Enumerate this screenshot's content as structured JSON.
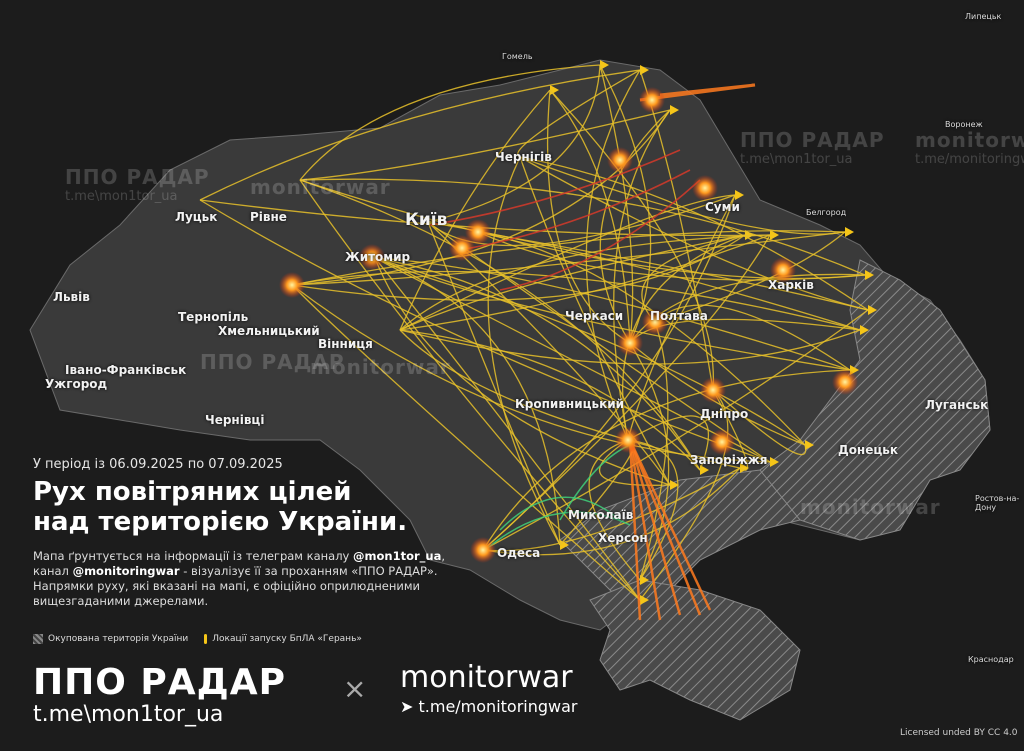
{
  "map": {
    "period": "У період із 06.09.2025 по 07.09.2025",
    "title_line1": "Рух повітряних цілей",
    "title_line2": "над територією України.",
    "description": {
      "p1": "Мапа ґрунтується на інформації із телеграм каналу ",
      "ch1": "@mon1tor_ua",
      "p2": ", канал ",
      "ch2": "@monitoringwar",
      "p3": " - візуалізує її за проханням «ППО РАДАР». Напрямки руху, які вказані на мапі, є офіційно оприлюдненими вищезгаданими джерелами."
    },
    "legend": {
      "occupied": "Окупована територія України",
      "launch": "Локації запуску БпЛА «Герань»"
    },
    "colors": {
      "drone_path": "#e8c12a",
      "missile_path": "#ff7a1f",
      "red_path": "#d63a2a",
      "green_path": "#3fd07a",
      "occupied": "#5a5a5a"
    },
    "cities_major": [
      {
        "name": "Київ"
      },
      {
        "name": "Житомир"
      },
      {
        "name": "Рівне"
      },
      {
        "name": "Луцьк"
      },
      {
        "name": "Львів"
      },
      {
        "name": "Тернопіль"
      },
      {
        "name": "Хмельницький"
      },
      {
        "name": "Вінниця"
      },
      {
        "name": "Ужгород"
      },
      {
        "name": "Івано-Франківськ"
      },
      {
        "name": "Чернівці"
      },
      {
        "name": "Чернігів"
      },
      {
        "name": "Суми"
      },
      {
        "name": "Харків"
      },
      {
        "name": "Полтава"
      },
      {
        "name": "Черкаси"
      },
      {
        "name": "Кропивницький"
      },
      {
        "name": "Дніпро"
      },
      {
        "name": "Запоріжжя"
      },
      {
        "name": "Донецьк"
      },
      {
        "name": "Луганськ"
      },
      {
        "name": "Миколаїв"
      },
      {
        "name": "Херсон"
      },
      {
        "name": "Одеса"
      }
    ],
    "cities_foreign": [
      {
        "name": "Гомель"
      },
      {
        "name": "Липецьк"
      },
      {
        "name": "Воронеж"
      },
      {
        "name": "Белгород"
      },
      {
        "name": "Ростов-на-Дону"
      },
      {
        "name": "Краснодар"
      }
    ]
  },
  "watermarks": {
    "ppo": "ППО РАДАР",
    "ppo_link": "t.me\\mon1tor_ua",
    "mw": "monitorwar",
    "mw_link": "t.me/monitoringwar"
  },
  "footer": {
    "brand1": "ППО РАДАР",
    "brand1_link": "t.me\\mon1tor_ua",
    "times": "×",
    "brand2": "monitorwar",
    "brand2_link": "t.me/monitoringwar",
    "telegram_icon": "telegram-icon",
    "license": "Licensed unded BY CC 4.0"
  }
}
